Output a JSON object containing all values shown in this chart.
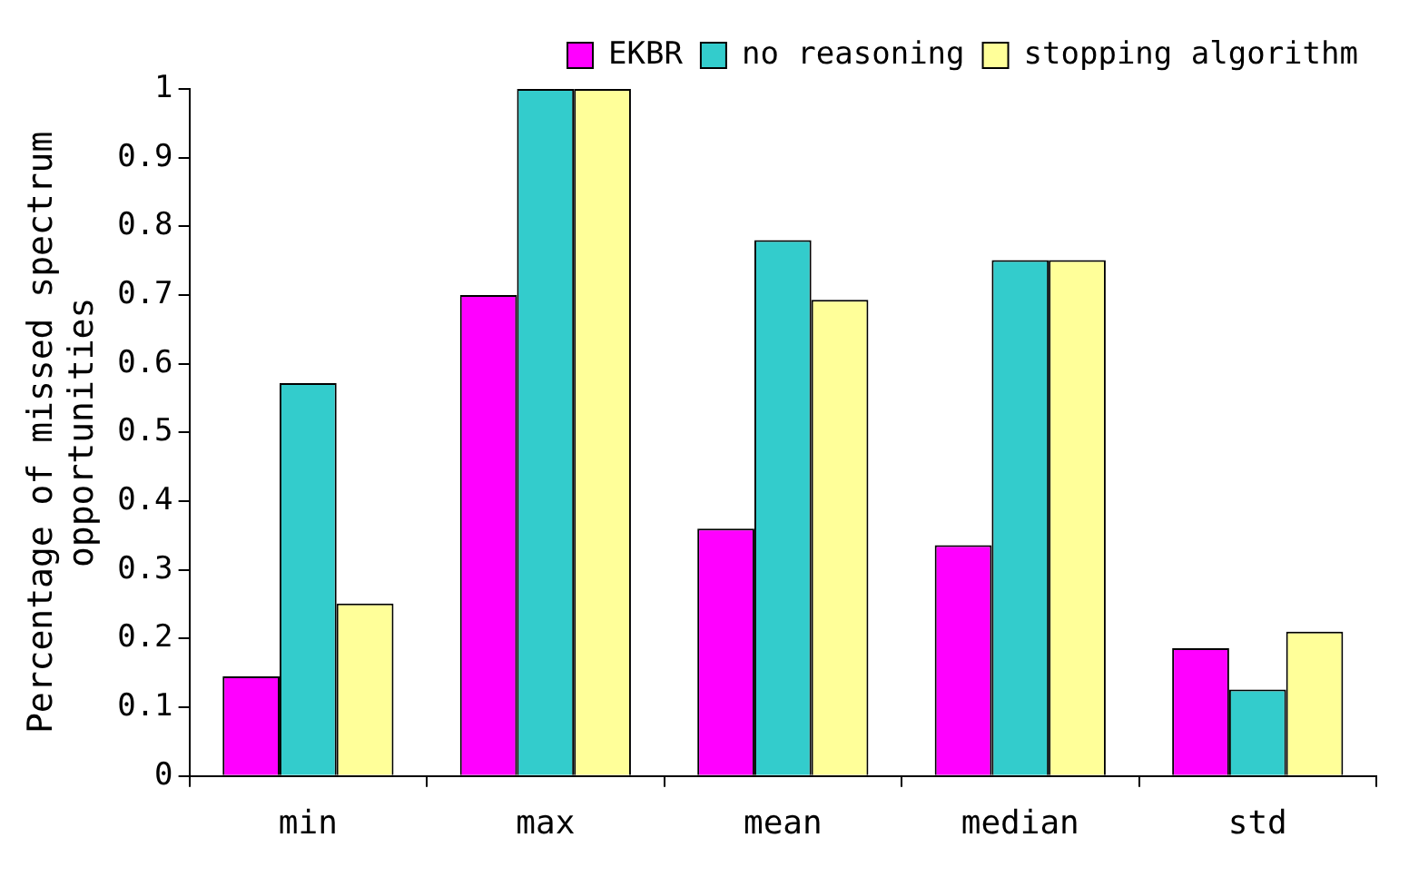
{
  "chart_data": {
    "type": "bar",
    "ylabel": "Percentage of missed spectrum opportunities",
    "categories": [
      "min",
      "max",
      "mean",
      "median",
      "std"
    ],
    "series": [
      {
        "name": "EKBR",
        "color": "#ff00ff",
        "values": [
          0.145,
          0.7,
          0.36,
          0.336,
          0.186
        ]
      },
      {
        "name": "no reasoning",
        "color": "#33cccc",
        "values": [
          0.572,
          1,
          0.78,
          0.751,
          0.126
        ]
      },
      {
        "name": "stopping algorithm",
        "color": "#ffff99",
        "values": [
          0.251,
          1,
          0.693,
          0.751,
          0.21
        ]
      }
    ],
    "ylim": [
      0,
      1
    ],
    "yticks": [
      0,
      0.1,
      0.2,
      0.3,
      0.4,
      0.5,
      0.6,
      0.7,
      0.8,
      0.9,
      1
    ],
    "grid": false,
    "legend": "top right"
  }
}
